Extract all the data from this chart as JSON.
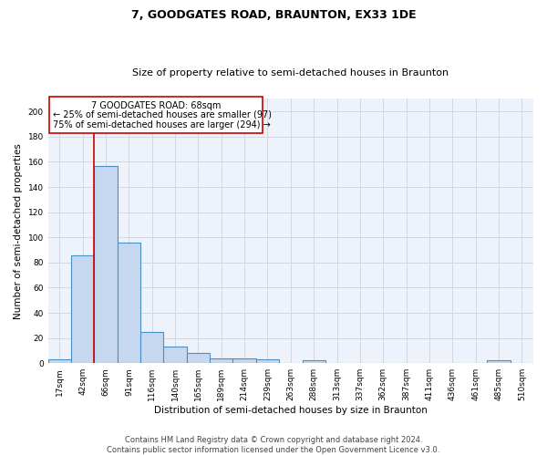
{
  "title": "7, GOODGATES ROAD, BRAUNTON, EX33 1DE",
  "subtitle": "Size of property relative to semi-detached houses in Braunton",
  "xlabel": "Distribution of semi-detached houses by size in Braunton",
  "ylabel": "Number of semi-detached properties",
  "footnote": "Contains HM Land Registry data © Crown copyright and database right 2024.\nContains public sector information licensed under the Open Government Licence v3.0.",
  "bin_labels": [
    "17sqm",
    "42sqm",
    "66sqm",
    "91sqm",
    "116sqm",
    "140sqm",
    "165sqm",
    "189sqm",
    "214sqm",
    "239sqm",
    "263sqm",
    "288sqm",
    "313sqm",
    "337sqm",
    "362sqm",
    "387sqm",
    "411sqm",
    "436sqm",
    "461sqm",
    "485sqm",
    "510sqm"
  ],
  "bar_heights": [
    3,
    86,
    157,
    96,
    25,
    13,
    8,
    4,
    4,
    3,
    0,
    2,
    0,
    0,
    0,
    0,
    0,
    0,
    0,
    2,
    0
  ],
  "bar_color": "#c5d8f0",
  "bar_edge_color": "#4a90c4",
  "bar_edge_width": 0.8,
  "ylim": [
    0,
    210
  ],
  "yticks": [
    0,
    20,
    40,
    60,
    80,
    100,
    120,
    140,
    160,
    180,
    200
  ],
  "red_line_x": 1.5,
  "property_label": "7 GOODGATES ROAD: 68sqm",
  "pct_smaller_label": "← 25% of semi-detached houses are smaller (97)",
  "pct_larger_label": "75% of semi-detached houses are larger (294) →",
  "annotation_box_color": "#ffffff",
  "annotation_box_edge": "#cc0000",
  "red_line_color": "#cc0000",
  "grid_color": "#d0d8e8",
  "background_color": "#eef2fa",
  "title_fontsize": 9,
  "subtitle_fontsize": 8,
  "label_fontsize": 7.5,
  "tick_fontsize": 6.5,
  "annotation_fontsize": 7,
  "footnote_fontsize": 6
}
